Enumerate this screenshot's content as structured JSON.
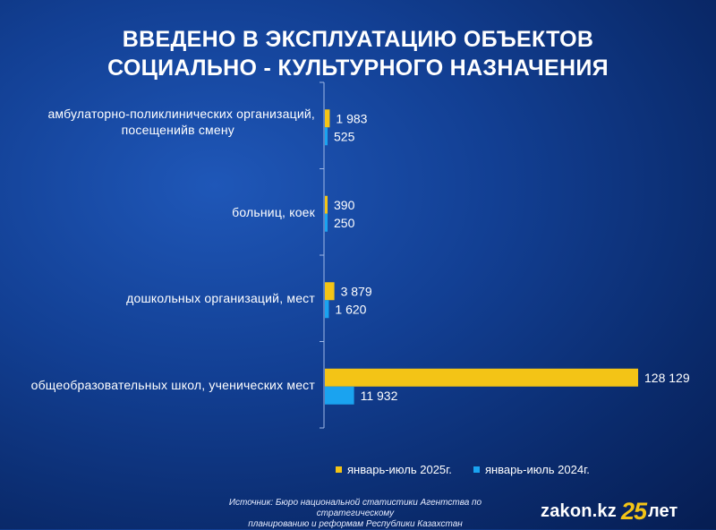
{
  "title_lines": [
    "ВВЕДЕНО В ЭКСПЛУАТАЦИЮ ОБЪЕКТОВ",
    "СОЦИАЛЬНО - КУЛЬТУРНОГО НАЗНАЧЕНИЯ"
  ],
  "chart_data": {
    "type": "bar",
    "orientation": "horizontal",
    "title": "ВВЕДЕНО В ЭКСПЛУАТАЦИЮ ОБЪЕКТОВ СОЦИАЛЬНО - КУЛЬТУРНОГО НАЗНАЧЕНИЯ",
    "categories": [
      [
        "амбулаторно-поликлинических организаций,",
        "посещенийв смену"
      ],
      [
        "больниц, коек"
      ],
      [
        "дошкольных организаций, мест"
      ],
      [
        "общеобразовательных школ, ученических мест"
      ]
    ],
    "series": [
      {
        "name": "январь-июль 2025г.",
        "color": "#f3c416",
        "values": [
          1983,
          390,
          3879,
          128129
        ],
        "labels": [
          "1 983",
          "390",
          "3 879",
          "128 129"
        ]
      },
      {
        "name": "январь-июль 2024г.",
        "color": "#1aa3f0",
        "values": [
          525,
          250,
          1620,
          11932
        ],
        "labels": [
          "525",
          "250",
          "1 620",
          "11 932"
        ]
      }
    ],
    "xlim": [
      0,
      128129
    ],
    "grid": false,
    "legend_position": "bottom-right"
  },
  "source_lines": [
    "Источник: Бюро национальной статистики Агентства по стратегическому",
    "планированию и реформам Республики Казахстан"
  ],
  "logo": {
    "main": "zakon.kz",
    "number": "25",
    "suffix": "лет"
  }
}
